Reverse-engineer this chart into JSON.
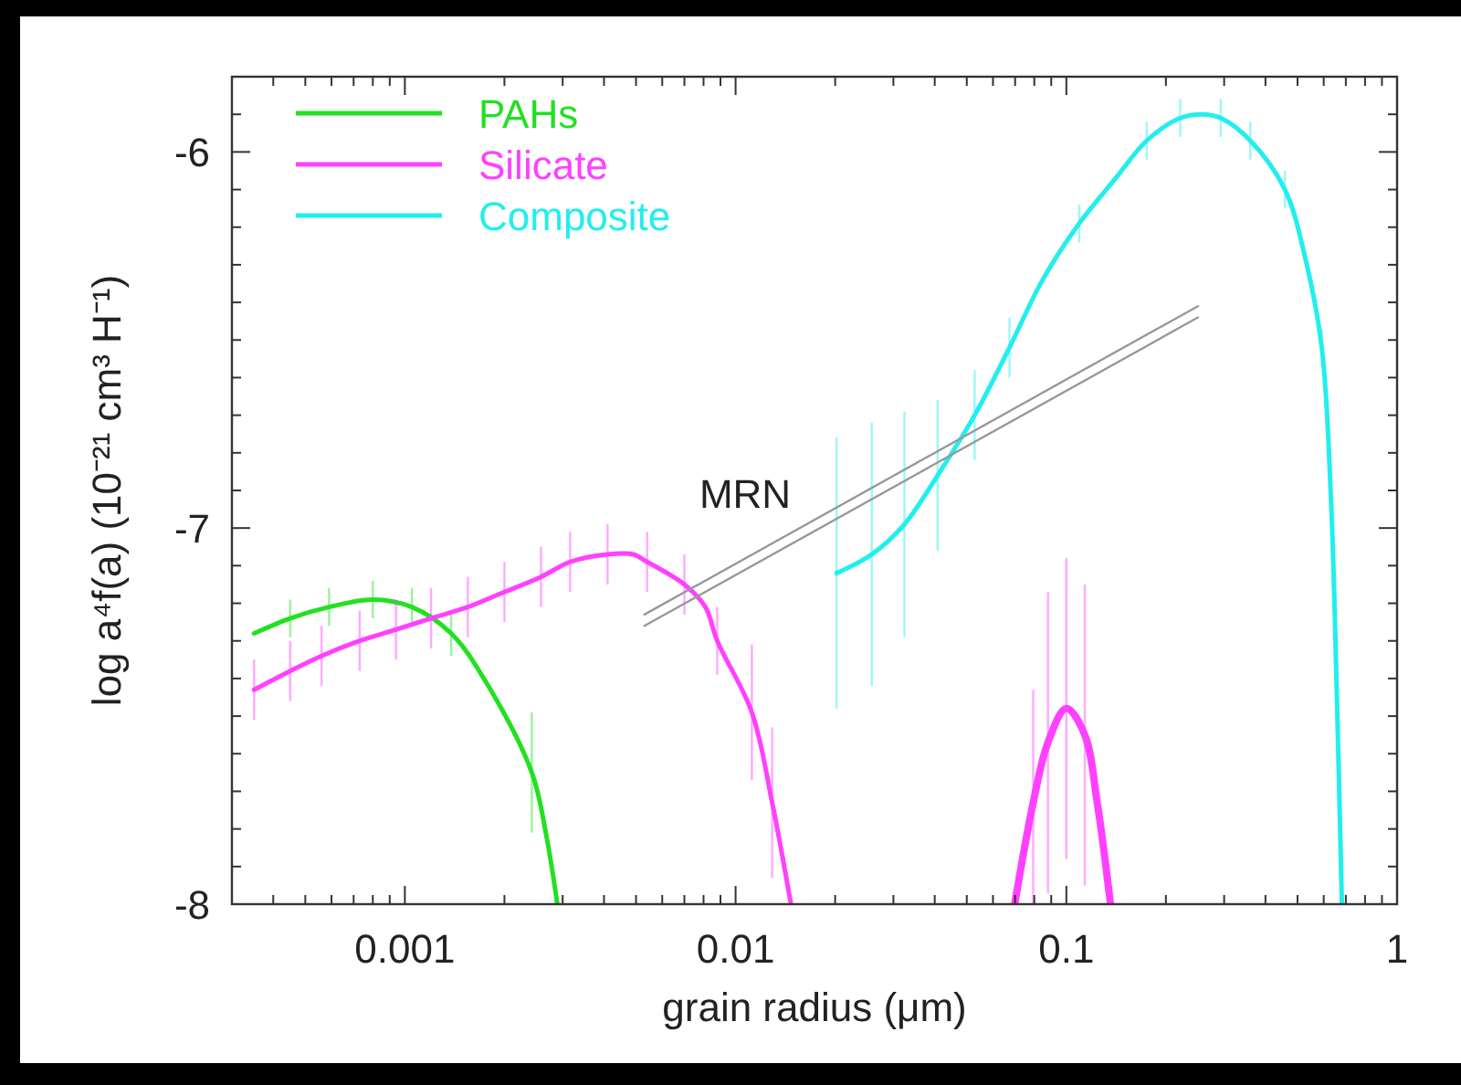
{
  "chart_data": {
    "type": "line",
    "xlabel": "grain radius  (μm)",
    "ylabel": "log  a⁴f(a)  (10⁻²¹ cm³ H⁻¹)",
    "log": "x",
    "legend": "top left",
    "xlim": [
      0.0003,
      1
    ],
    "ylim": [
      -8,
      -5.8
    ],
    "xticks": [
      {
        "value": 0.0003,
        "label": null
      },
      {
        "value": 0.0004,
        "label": null
      },
      {
        "value": 0.0005,
        "label": null
      },
      {
        "value": 0.0006,
        "label": null
      },
      {
        "value": 0.0007,
        "label": null
      },
      {
        "value": 0.0008,
        "label": null
      },
      {
        "value": 0.0009,
        "label": null
      },
      0.001,
      {
        "value": 0.002,
        "label": null
      },
      {
        "value": 0.003,
        "label": null
      },
      {
        "value": 0.004,
        "label": null
      },
      {
        "value": 0.005,
        "label": null
      },
      {
        "value": 0.006,
        "label": null
      },
      {
        "value": 0.007,
        "label": null
      },
      {
        "value": 0.008,
        "label": null
      },
      {
        "value": 0.009,
        "label": null
      },
      0.01,
      {
        "value": 0.02,
        "label": null
      },
      {
        "value": 0.03,
        "label": null
      },
      {
        "value": 0.04,
        "label": null
      },
      {
        "value": 0.05,
        "label": null
      },
      {
        "value": 0.06,
        "label": null
      },
      {
        "value": 0.07,
        "label": null
      },
      {
        "value": 0.08,
        "label": null
      },
      {
        "value": 0.09,
        "label": null
      },
      0.1,
      {
        "value": 0.2,
        "label": null
      },
      {
        "value": 0.3,
        "label": null
      },
      {
        "value": 0.4,
        "label": null
      },
      {
        "value": 0.5,
        "label": null
      },
      {
        "value": 0.6,
        "label": null
      },
      {
        "value": 0.7,
        "label": null
      },
      {
        "value": 0.8,
        "label": null
      },
      {
        "value": 0.9,
        "label": null
      },
      1
    ],
    "yticks": [
      -8,
      {
        "value": -7.9,
        "label": null
      },
      {
        "value": -7.8,
        "label": null
      },
      {
        "value": -7.7,
        "label": null
      },
      {
        "value": -7.6,
        "label": null
      },
      {
        "value": -7.5,
        "label": null
      },
      {
        "value": -7.4,
        "label": null
      },
      {
        "value": -7.3,
        "label": null
      },
      {
        "value": -7.2,
        "label": null
      },
      {
        "value": -7.1,
        "label": null
      },
      -7,
      {
        "value": -6.9,
        "label": null
      },
      {
        "value": -6.8,
        "label": null
      },
      {
        "value": -6.7,
        "label": null
      },
      {
        "value": -6.6,
        "label": null
      },
      {
        "value": -6.5,
        "label": null
      },
      {
        "value": -6.4,
        "label": null
      },
      {
        "value": -6.3,
        "label": null
      },
      {
        "value": -6.2,
        "label": null
      },
      {
        "value": -6.1,
        "label": null
      },
      -6,
      {
        "value": -5.9,
        "label": null
      }
    ],
    "annotations": [
      "MRN"
    ],
    "series": [
      {
        "name": "PAHs",
        "color": "#22e022",
        "x": [
          0.00035,
          0.00045,
          0.00059,
          0.0008,
          0.00105,
          0.00138,
          0.00176,
          0.00242,
          0.00268,
          0.00289
        ],
        "values": [
          -7.28,
          -7.24,
          -7.21,
          -7.19,
          -7.21,
          -7.28,
          -7.41,
          -7.65,
          -7.82,
          -8.0
        ],
        "errors": [
          null,
          0.05,
          0.05,
          0.05,
          0.05,
          0.06,
          null,
          0.16,
          null,
          null
        ]
      },
      {
        "name": "Silicate",
        "color": "#ff40ff",
        "x": [
          0.00035,
          0.00045,
          0.00056,
          0.00073,
          0.00094,
          0.0012,
          0.00155,
          0.002,
          0.00258,
          0.00316,
          0.0041,
          0.0049,
          0.0054,
          0.007,
          0.0081,
          0.0088,
          0.0112,
          0.0129,
          0.0147
        ],
        "values": [
          -7.43,
          -7.38,
          -7.34,
          -7.3,
          -7.27,
          -7.24,
          -7.21,
          -7.17,
          -7.13,
          -7.09,
          -7.07,
          -7.07,
          -7.09,
          -7.15,
          -7.21,
          -7.3,
          -7.49,
          -7.73,
          -8.0
        ],
        "errors": [
          0.08,
          0.08,
          0.08,
          0.08,
          0.08,
          0.08,
          0.08,
          0.08,
          0.08,
          0.08,
          0.08,
          null,
          0.08,
          0.08,
          null,
          0.09,
          0.18,
          0.2,
          null
        ]
      },
      {
        "color": "#ff40ff",
        "x": [
          0.0698,
          0.0794,
          0.088,
          0.1,
          0.1137,
          0.124,
          0.136
        ],
        "values": [
          -8.0,
          -7.73,
          -7.57,
          -7.48,
          -7.55,
          -7.73,
          -8.0
        ],
        "errors": [
          null,
          0.3,
          0.4,
          0.4,
          0.4,
          null,
          null
        ]
      },
      {
        "name": "Composite",
        "color": "#22eeee",
        "x": [
          0.0202,
          0.0258,
          0.0324,
          0.0408,
          0.0528,
          0.0673,
          0.0848,
          0.1094,
          0.141,
          0.175,
          0.221,
          0.258,
          0.293,
          0.36,
          0.458,
          0.527,
          0.592,
          0.631,
          0.656,
          0.681
        ],
        "values": [
          -7.12,
          -7.07,
          -6.99,
          -6.86,
          -6.7,
          -6.52,
          -6.34,
          -6.19,
          -6.07,
          -5.97,
          -5.91,
          -5.9,
          -5.91,
          -5.97,
          -6.1,
          -6.28,
          -6.52,
          -6.92,
          -7.41,
          -8.0
        ],
        "errors": [
          0.36,
          0.35,
          0.3,
          0.2,
          0.12,
          0.08,
          null,
          0.05,
          null,
          0.05,
          0.05,
          null,
          0.05,
          0.05,
          0.05,
          null,
          0.05,
          null,
          null,
          null
        ]
      },
      {
        "color": "#999999",
        "x": [
          0.0053,
          0.25
        ],
        "values": [
          -7.23,
          -6.41
        ]
      },
      {
        "color": "#999999",
        "x": [
          0.0053,
          0.25
        ],
        "values": [
          -7.26,
          -6.44
        ]
      }
    ]
  }
}
